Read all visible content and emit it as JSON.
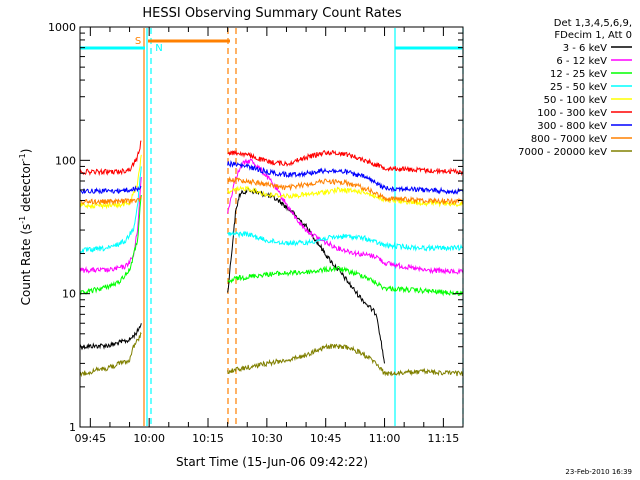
{
  "chart_data": {
    "type": "line",
    "title": "HESSI Observing Summary Count Rates",
    "xlabel": "Start Time (15-Jun-06 09:42:22)",
    "ylabel_main": "Count Rate (s",
    "ylabel_sup1": "-1",
    "ylabel_mid": " detector",
    "ylabel_sup2": "-1",
    "ylabel_end": ")",
    "y_scale": "log",
    "ylim": [
      1,
      1000
    ],
    "xlim": [
      "09:42:22",
      "11:20:00"
    ],
    "x_unit": "HH:MM",
    "x_ticks": [
      "09:45",
      "10:00",
      "10:15",
      "10:30",
      "10:45",
      "11:00",
      "11:15"
    ],
    "y_ticks": [
      {
        "value": 1,
        "label": "1"
      },
      {
        "value": 10,
        "label": "10"
      },
      {
        "value": 100,
        "label": "100"
      },
      {
        "value": 1000,
        "label": "1000"
      }
    ],
    "legend_placement": "right, outside",
    "legend_header": [
      "Det 1,3,4,5,6,9,",
      "FDecim 1, Att 0"
    ],
    "series": [
      {
        "name": "3 - 6 keV",
        "color": "#000000",
        "segments": [
          [
            [
              "09:42:22",
              4.0
            ],
            [
              "09:50",
              4.1
            ],
            [
              "09:55",
              4.5
            ],
            [
              "09:57",
              5.2
            ],
            [
              "09:58",
              6.0
            ]
          ],
          [
            [
              "10:20",
              10
            ],
            [
              "10:21",
              20
            ],
            [
              "10:22",
              40
            ],
            [
              "10:23",
              55
            ],
            [
              "10:25",
              60
            ],
            [
              "10:27",
              58
            ],
            [
              "10:30",
              55
            ],
            [
              "10:33",
              50
            ],
            [
              "10:36",
              42
            ],
            [
              "10:40",
              32
            ],
            [
              "10:43",
              24
            ],
            [
              "10:46",
              18
            ],
            [
              "10:50",
              13
            ],
            [
              "10:53",
              10
            ],
            [
              "10:56",
              8
            ],
            [
              "10:58",
              7
            ],
            [
              "11:00",
              3
            ]
          ]
        ]
      },
      {
        "name": "6 - 12 keV",
        "color": "#ff00ff",
        "segments": [
          [
            [
              "09:42:22",
              15
            ],
            [
              "09:50",
              15
            ],
            [
              "09:54",
              16
            ],
            [
              "09:56",
              19
            ],
            [
              "09:57",
              30
            ],
            [
              "09:58",
              75
            ]
          ],
          [
            [
              "10:20",
              40
            ],
            [
              "10:22",
              75
            ],
            [
              "10:24",
              95
            ],
            [
              "10:26",
              100
            ],
            [
              "10:28",
              88
            ],
            [
              "10:31",
              70
            ],
            [
              "10:34",
              52
            ],
            [
              "10:37",
              38
            ],
            [
              "10:40",
              30
            ],
            [
              "10:44",
              25
            ],
            [
              "10:48",
              22
            ],
            [
              "10:53",
              20
            ],
            [
              "10:58",
              19
            ],
            [
              "11:00",
              17
            ],
            [
              "11:10",
              15
            ],
            [
              "11:20",
              14.5
            ]
          ]
        ]
      },
      {
        "name": "12 - 25 keV",
        "color": "#00ff00",
        "segments": [
          [
            [
              "09:42:22",
              10
            ],
            [
              "09:48",
              11
            ],
            [
              "09:52",
              12
            ],
            [
              "09:55",
              15
            ],
            [
              "09:57",
              25
            ],
            [
              "09:58",
              55
            ]
          ],
          [
            [
              "10:20",
              12
            ],
            [
              "10:22",
              13
            ],
            [
              "10:30",
              14
            ],
            [
              "10:40",
              14.5
            ],
            [
              "10:48",
              15.5
            ],
            [
              "10:55",
              13.5
            ],
            [
              "11:00",
              11
            ],
            [
              "11:10",
              10.5
            ],
            [
              "11:20",
              10
            ]
          ]
        ]
      },
      {
        "name": "25 - 50 keV",
        "color": "#00ffff",
        "segments": [
          [
            [
              "09:42:22",
              21
            ],
            [
              "09:50",
              22
            ],
            [
              "09:54",
              25
            ],
            [
              "09:56",
              31
            ],
            [
              "09:57",
              45
            ],
            [
              "09:58",
              90
            ]
          ],
          [
            [
              "10:20",
              28
            ],
            [
              "10:25",
              28
            ],
            [
              "10:30",
              25
            ],
            [
              "10:35",
              24
            ],
            [
              "10:40",
              24
            ],
            [
              "10:45",
              26
            ],
            [
              "10:50",
              27
            ],
            [
              "10:55",
              26
            ],
            [
              "11:00",
              23
            ],
            [
              "11:10",
              22
            ],
            [
              "11:20",
              22
            ]
          ]
        ]
      },
      {
        "name": "50 - 100 keV",
        "color": "#ffff00",
        "segments": [
          [
            [
              "09:42:22",
              46
            ],
            [
              "09:52",
              46
            ],
            [
              "09:55",
              48
            ],
            [
              "09:57",
              65
            ],
            [
              "09:58",
              110
            ]
          ],
          [
            [
              "10:20",
              58
            ],
            [
              "10:25",
              62
            ],
            [
              "10:30",
              55
            ],
            [
              "10:36",
              54
            ],
            [
              "10:42",
              56
            ],
            [
              "10:48",
              60
            ],
            [
              "10:55",
              58
            ],
            [
              "11:00",
              50
            ],
            [
              "11:10",
              48
            ],
            [
              "11:20",
              47
            ]
          ]
        ]
      },
      {
        "name": "100 - 300 keV",
        "color": "#ff0000",
        "segments": [
          [
            [
              "09:42:22",
              82
            ],
            [
              "09:52",
              82
            ],
            [
              "09:55",
              85
            ],
            [
              "09:57",
              105
            ],
            [
              "09:58",
              140
            ]
          ],
          [
            [
              "10:20",
              115
            ],
            [
              "10:24",
              112
            ],
            [
              "10:30",
              98
            ],
            [
              "10:35",
              94
            ],
            [
              "10:40",
              105
            ],
            [
              "10:45",
              115
            ],
            [
              "10:50",
              112
            ],
            [
              "10:55",
              100
            ],
            [
              "11:00",
              88
            ],
            [
              "11:10",
              84
            ],
            [
              "11:20",
              82
            ]
          ]
        ]
      },
      {
        "name": "300 - 800 keV",
        "color": "#0000ff",
        "segments": [
          [
            [
              "09:42:22",
              59
            ],
            [
              "09:52",
              59
            ],
            [
              "09:57",
              61
            ],
            [
              "09:58",
              63
            ]
          ],
          [
            [
              "10:20",
              95
            ],
            [
              "10:25",
              90
            ],
            [
              "10:30",
              82
            ],
            [
              "10:35",
              78
            ],
            [
              "10:40",
              80
            ],
            [
              "10:45",
              84
            ],
            [
              "10:50",
              82
            ],
            [
              "10:55",
              75
            ],
            [
              "11:00",
              62
            ],
            [
              "11:10",
              60
            ],
            [
              "11:20",
              58
            ]
          ]
        ]
      },
      {
        "name": "800 - 7000 keV",
        "color": "#ff8000",
        "segments": [
          [
            [
              "09:42:22",
              49
            ],
            [
              "09:52",
              49
            ],
            [
              "09:57",
              50
            ],
            [
              "09:58",
              52
            ]
          ],
          [
            [
              "10:20",
              72
            ],
            [
              "10:25",
              70
            ],
            [
              "10:30",
              66
            ],
            [
              "10:35",
              62
            ],
            [
              "10:40",
              66
            ],
            [
              "10:45",
              70
            ],
            [
              "10:50",
              68
            ],
            [
              "10:55",
              62
            ],
            [
              "11:00",
              52
            ],
            [
              "11:10",
              50
            ],
            [
              "11:20",
              49
            ]
          ]
        ]
      },
      {
        "name": "7000 - 20000 keV",
        "color": "#808000",
        "segments": [
          [
            [
              "09:42:22",
              2.5
            ],
            [
              "09:50",
              2.8
            ],
            [
              "09:55",
              3.2
            ],
            [
              "09:56",
              4.0
            ],
            [
              "09:58",
              5.0
            ]
          ],
          [
            [
              "10:20",
              2.6
            ],
            [
              "10:30",
              3.0
            ],
            [
              "10:38",
              3.3
            ],
            [
              "10:45",
              4.0
            ],
            [
              "10:50",
              4.0
            ],
            [
              "10:54",
              3.6
            ],
            [
              "10:58",
              3.0
            ],
            [
              "11:00",
              2.5
            ],
            [
              "11:10",
              2.6
            ],
            [
              "11:20",
              2.5
            ]
          ]
        ]
      }
    ],
    "annotations": {
      "saa_label": "S",
      "night_label": "N"
    }
  },
  "footer_date": "23-Feb-2010 16:39"
}
